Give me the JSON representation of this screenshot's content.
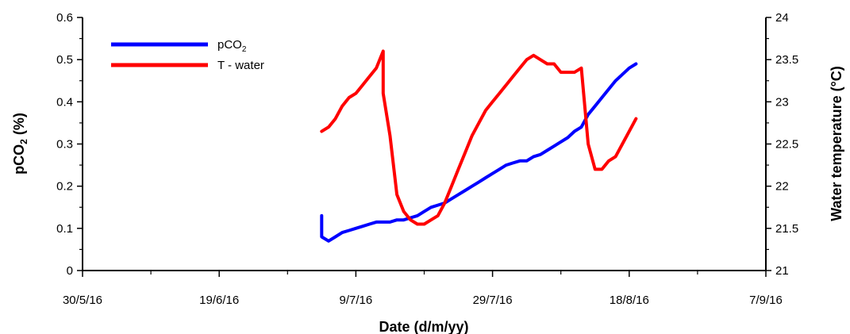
{
  "chart_data": {
    "type": "line",
    "xlabel": "Date (d/m/yy)",
    "ylabel_main": "pCO",
    "ylabel_sub": "2",
    "ylabel_suffix": " (%)",
    "y2label": "Water temperature (°C)",
    "x_tick_labels": [
      "30/5/16",
      "19/6/16",
      "9/7/16",
      "29/7/16",
      "18/8/16",
      "7/9/16"
    ],
    "x_range_days": [
      0,
      100
    ],
    "ylim": [
      0,
      0.6
    ],
    "y_ticks": [
      "0",
      "0.1",
      "0.2",
      "0.3",
      "0.4",
      "0.5",
      "0.6"
    ],
    "y2lim": [
      21,
      24
    ],
    "y2_ticks": [
      "21",
      "21.5",
      "22",
      "22.5",
      "23",
      "23.5",
      "24"
    ],
    "legend_position": "top-left",
    "grid": false,
    "series": [
      {
        "name": "pCO",
        "name_sub": "2",
        "axis": "left",
        "color": "#0000ff",
        "points": [
          [
            "4/7/16",
            0.13
          ],
          [
            "4/7/16",
            0.08
          ],
          [
            "5/7/16",
            0.07
          ],
          [
            "6/7/16",
            0.08
          ],
          [
            "7/7/16",
            0.09
          ],
          [
            "8/7/16",
            0.095
          ],
          [
            "9/7/16",
            0.1
          ],
          [
            "10/7/16",
            0.105
          ],
          [
            "11/7/16",
            0.11
          ],
          [
            "12/7/16",
            0.115
          ],
          [
            "13/7/16",
            0.115
          ],
          [
            "14/7/16",
            0.115
          ],
          [
            "15/7/16",
            0.12
          ],
          [
            "16/7/16",
            0.12
          ],
          [
            "17/7/16",
            0.125
          ],
          [
            "18/7/16",
            0.13
          ],
          [
            "19/7/16",
            0.14
          ],
          [
            "20/7/16",
            0.15
          ],
          [
            "21/7/16",
            0.155
          ],
          [
            "22/7/16",
            0.16
          ],
          [
            "23/7/16",
            0.17
          ],
          [
            "24/7/16",
            0.18
          ],
          [
            "25/7/16",
            0.19
          ],
          [
            "26/7/16",
            0.2
          ],
          [
            "27/7/16",
            0.21
          ],
          [
            "28/7/16",
            0.22
          ],
          [
            "29/7/16",
            0.23
          ],
          [
            "30/7/16",
            0.24
          ],
          [
            "31/7/16",
            0.25
          ],
          [
            "1/8/16",
            0.255
          ],
          [
            "2/8/16",
            0.26
          ],
          [
            "3/8/16",
            0.26
          ],
          [
            "4/8/16",
            0.27
          ],
          [
            "5/8/16",
            0.275
          ],
          [
            "6/8/16",
            0.285
          ],
          [
            "7/8/16",
            0.295
          ],
          [
            "8/8/16",
            0.305
          ],
          [
            "9/8/16",
            0.315
          ],
          [
            "10/8/16",
            0.33
          ],
          [
            "11/8/16",
            0.34
          ],
          [
            "12/8/16",
            0.37
          ],
          [
            "13/8/16",
            0.39
          ],
          [
            "14/8/16",
            0.41
          ],
          [
            "15/8/16",
            0.43
          ],
          [
            "16/8/16",
            0.45
          ],
          [
            "17/8/16",
            0.465
          ],
          [
            "18/8/16",
            0.48
          ],
          [
            "19/8/16",
            0.49
          ]
        ]
      },
      {
        "name": "T - water",
        "axis": "right",
        "color": "#ff0000",
        "points": [
          [
            "4/7/16",
            22.65
          ],
          [
            "5/7/16",
            22.7
          ],
          [
            "6/7/16",
            22.8
          ],
          [
            "7/7/16",
            22.95
          ],
          [
            "8/7/16",
            23.05
          ],
          [
            "9/7/16",
            23.1
          ],
          [
            "10/7/16",
            23.2
          ],
          [
            "11/7/16",
            23.3
          ],
          [
            "12/7/16",
            23.4
          ],
          [
            "13/7/16",
            23.6
          ],
          [
            "13/7/16",
            23.1
          ],
          [
            "14/7/16",
            22.6
          ],
          [
            "15/7/16",
            21.9
          ],
          [
            "16/7/16",
            21.7
          ],
          [
            "17/7/16",
            21.6
          ],
          [
            "18/7/16",
            21.55
          ],
          [
            "19/7/16",
            21.55
          ],
          [
            "20/7/16",
            21.6
          ],
          [
            "21/7/16",
            21.65
          ],
          [
            "22/7/16",
            21.8
          ],
          [
            "23/7/16",
            22.0
          ],
          [
            "24/7/16",
            22.2
          ],
          [
            "25/7/16",
            22.4
          ],
          [
            "26/7/16",
            22.6
          ],
          [
            "27/7/16",
            22.75
          ],
          [
            "28/7/16",
            22.9
          ],
          [
            "29/7/16",
            23.0
          ],
          [
            "30/7/16",
            23.1
          ],
          [
            "31/7/16",
            23.2
          ],
          [
            "1/8/16",
            23.3
          ],
          [
            "2/8/16",
            23.4
          ],
          [
            "3/8/16",
            23.5
          ],
          [
            "4/8/16",
            23.55
          ],
          [
            "5/8/16",
            23.5
          ],
          [
            "6/8/16",
            23.45
          ],
          [
            "7/8/16",
            23.45
          ],
          [
            "8/8/16",
            23.35
          ],
          [
            "9/8/16",
            23.35
          ],
          [
            "10/8/16",
            23.35
          ],
          [
            "11/8/16",
            23.4
          ],
          [
            "12/8/16",
            22.5
          ],
          [
            "13/8/16",
            22.2
          ],
          [
            "14/8/16",
            22.2
          ],
          [
            "15/8/16",
            22.3
          ],
          [
            "16/8/16",
            22.35
          ],
          [
            "17/8/16",
            22.5
          ],
          [
            "18/8/16",
            22.65
          ],
          [
            "19/8/16",
            22.8
          ]
        ]
      }
    ]
  }
}
